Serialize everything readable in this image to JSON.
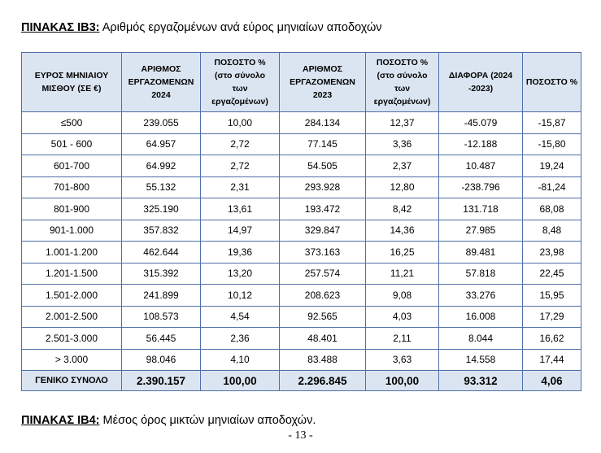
{
  "caption_top": {
    "label": "ΠΙΝΑΚΑΣ ΙΒ3:",
    "text": " Αριθμός εργαζομένων ανά εύρος μηνιαίων αποδοχών"
  },
  "caption_bottom": {
    "label": "ΠΙΝΑΚΑΣ ΙΒ4:",
    "text": " Μέσος όρος μικτών μηνιαίων αποδοχών."
  },
  "page_number": "- 13 -",
  "table": {
    "headers": [
      [
        "ΕΥΡΟΣ ΜΗΝΙΑΙΟΥ",
        "ΜΙΣΘΟΥ (ΣΕ €)"
      ],
      [
        "ΑΡΙΘΜΟΣ",
        "ΕΡΓΑΖΟΜΕΝΩΝ",
        "2024"
      ],
      [
        "ΠΟΣΟΣΤΟ %",
        "(στο σύνολο",
        "των",
        "εργαζομένων)"
      ],
      [
        "ΑΡΙΘΜΟΣ",
        "ΕΡΓΑΖΟΜΕΝΩΝ",
        "2023"
      ],
      [
        "ΠΟΣΟΣΤΟ %",
        "(στο σύνολο",
        "των",
        "εργαζομένων)"
      ],
      [
        "ΔΙΑΦΟΡΑ (2024",
        "-2023)"
      ],
      [
        "ΠΟΣΟΣΤΟ %"
      ]
    ],
    "rows": [
      [
        "≤500",
        "239.055",
        "10,00",
        "284.134",
        "12,37",
        "-45.079",
        "-15,87"
      ],
      [
        "501 - 600",
        "64.957",
        "2,72",
        "77.145",
        "3,36",
        "-12.188",
        "-15,80"
      ],
      [
        "601-700",
        "64.992",
        "2,72",
        "54.505",
        "2,37",
        "10.487",
        "19,24"
      ],
      [
        "701-800",
        "55.132",
        "2,31",
        "293.928",
        "12,80",
        "-238.796",
        "-81,24"
      ],
      [
        "801-900",
        "325.190",
        "13,61",
        "193.472",
        "8,42",
        "131.718",
        "68,08"
      ],
      [
        "901-1.000",
        "357.832",
        "14,97",
        "329.847",
        "14,36",
        "27.985",
        "8,48"
      ],
      [
        "1.001-1.200",
        "462.644",
        "19,36",
        "373.163",
        "16,25",
        "89.481",
        "23,98"
      ],
      [
        "1.201-1.500",
        "315.392",
        "13,20",
        "257.574",
        "11,21",
        "57.818",
        "22,45"
      ],
      [
        "1.501-2.000",
        "241.899",
        "10,12",
        "208.623",
        "9,08",
        "33.276",
        "15,95"
      ],
      [
        "2.001-2.500",
        "108.573",
        "4,54",
        "92.565",
        "4,03",
        "16.008",
        "17,29"
      ],
      [
        "2.501-3.000",
        "56.445",
        "2,36",
        "48.401",
        "2,11",
        "8.044",
        "16,62"
      ],
      [
        "> 3.000",
        "98.046",
        "4,10",
        "83.488",
        "3,63",
        "14.558",
        "17,44"
      ]
    ],
    "total": [
      "ΓΕΝΙΚΟ ΣΥΝΟΛΟ",
      "2.390.157",
      "100,00",
      "2.296.845",
      "100,00",
      "93.312",
      "4,06"
    ]
  }
}
